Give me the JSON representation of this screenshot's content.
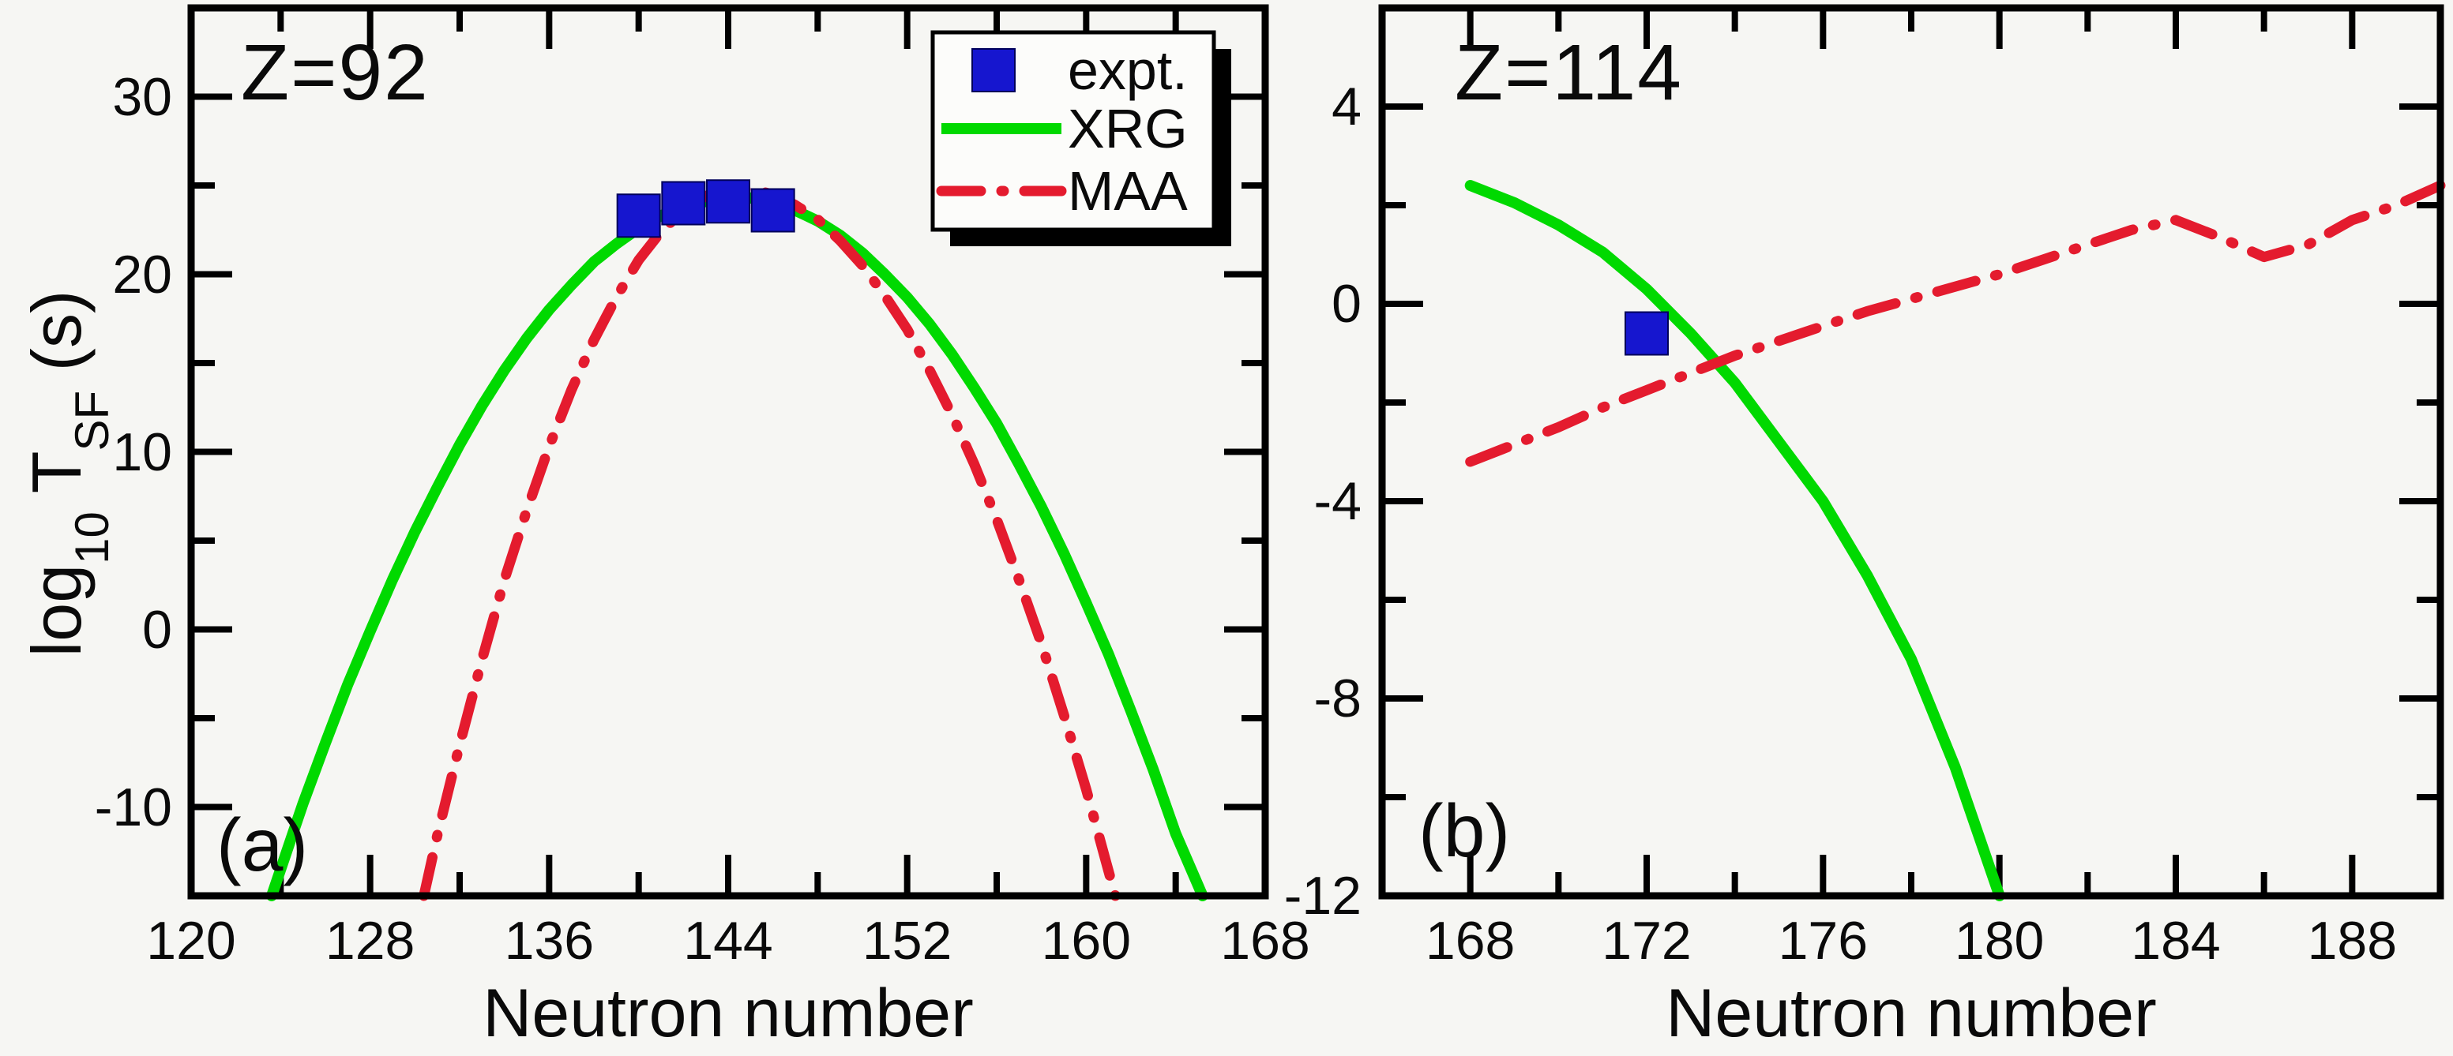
{
  "colors": {
    "background": "#f6f6f3",
    "frame": "#000000",
    "text": "#0a0a0a",
    "expt": "#1616cf",
    "xrg": "#00d900",
    "maa": "#e41b2e",
    "legend_bg": "#fcfcfa",
    "legend_shadow": "#000000"
  },
  "ylabel": {
    "prefix": "log",
    "sub1": "10",
    "mid": " T",
    "sub2": "SF",
    "suffix": " (s)"
  },
  "legend": {
    "items": [
      {
        "key": "expt",
        "label": "expt.",
        "marker": "square"
      },
      {
        "key": "xrg",
        "label": "XRG",
        "marker": "solid-line"
      },
      {
        "key": "maa",
        "label": "MAA",
        "marker": "dash-dot-line"
      }
    ]
  },
  "chart_data": [
    {
      "type": "line",
      "panel": "a",
      "corner_label": "(a)",
      "title": "Z=92",
      "xlabel": "Neutron number",
      "ylabel": "log10 T_SF (s)",
      "xlim": [
        120,
        168
      ],
      "ylim": [
        -15,
        35
      ],
      "xticks": [
        120,
        128,
        136,
        144,
        152,
        160,
        168
      ],
      "xticks_minor": [
        124,
        132,
        140,
        148,
        156,
        164
      ],
      "yticks": [
        30,
        20,
        10,
        0,
        -10
      ],
      "yticks_minor": [
        25,
        15,
        5,
        -5
      ],
      "grid": false,
      "series": [
        {
          "name": "XRG",
          "kind": "line",
          "style": "solid",
          "color_key": "xrg",
          "points": [
            [
              123.6,
              -15
            ],
            [
              125,
              -9.8
            ],
            [
              126,
              -6.4
            ],
            [
              127,
              -3.1
            ],
            [
              128,
              -0.1
            ],
            [
              129,
              2.8
            ],
            [
              130,
              5.5
            ],
            [
              131,
              8.0
            ],
            [
              132,
              10.4
            ],
            [
              133,
              12.6
            ],
            [
              134,
              14.6
            ],
            [
              135,
              16.4
            ],
            [
              136,
              18.0
            ],
            [
              137,
              19.4
            ],
            [
              138,
              20.7
            ],
            [
              139,
              21.7
            ],
            [
              140,
              22.6
            ],
            [
              141,
              23.3
            ],
            [
              142,
              23.8
            ],
            [
              143,
              24.1
            ],
            [
              144,
              24.3
            ],
            [
              145,
              24.3
            ],
            [
              146,
              24.0
            ],
            [
              147,
              23.6
            ],
            [
              148,
              23.0
            ],
            [
              149,
              22.2
            ],
            [
              150,
              21.2
            ],
            [
              151,
              20.0
            ],
            [
              152,
              18.7
            ],
            [
              153,
              17.2
            ],
            [
              154,
              15.5
            ],
            [
              155,
              13.6
            ],
            [
              156,
              11.6
            ],
            [
              157,
              9.3
            ],
            [
              158,
              6.9
            ],
            [
              159,
              4.3
            ],
            [
              160,
              1.5
            ],
            [
              161,
              -1.4
            ],
            [
              162,
              -4.6
            ],
            [
              163,
              -7.9
            ],
            [
              164,
              -11.5
            ],
            [
              165.2,
              -15
            ]
          ]
        },
        {
          "name": "MAA",
          "kind": "line",
          "style": "dashdot",
          "color_key": "maa",
          "points": [
            [
              130.4,
              -15
            ],
            [
              131,
              -11.6
            ],
            [
              132,
              -6.5
            ],
            [
              133,
              -1.7
            ],
            [
              134,
              2.8
            ],
            [
              135,
              6.7
            ],
            [
              136,
              10.3
            ],
            [
              137,
              13.5
            ],
            [
              138,
              16.3
            ],
            [
              139,
              18.7
            ],
            [
              140,
              20.8
            ],
            [
              141,
              22.4
            ],
            [
              142,
              23.6
            ],
            [
              143,
              24.4
            ],
            [
              144,
              24.8
            ],
            [
              145,
              24.8
            ],
            [
              146,
              24.5
            ],
            [
              147,
              23.9
            ],
            [
              148,
              23.1
            ],
            [
              149,
              21.9
            ],
            [
              150,
              20.5
            ],
            [
              151,
              18.8
            ],
            [
              152,
              16.9
            ],
            [
              153,
              14.6
            ],
            [
              154,
              12.1
            ],
            [
              155,
              9.3
            ],
            [
              156,
              6.2
            ],
            [
              157,
              2.8
            ],
            [
              158,
              -0.8
            ],
            [
              159,
              -4.8
            ],
            [
              160,
              -9.0
            ],
            [
              161.3,
              -15
            ]
          ]
        },
        {
          "name": "expt.",
          "kind": "scatter",
          "marker": "square",
          "color_key": "expt",
          "points": [
            [
              140,
              23.3
            ],
            [
              142,
              24.0
            ],
            [
              144,
              24.1
            ],
            [
              146,
              23.6
            ]
          ]
        }
      ]
    },
    {
      "type": "line",
      "panel": "b",
      "corner_label": "(b)",
      "title": "Z=114",
      "xlabel": "Neutron number",
      "ylabel": "log10 T_SF (s)",
      "xlim": [
        166,
        190
      ],
      "ylim": [
        -12,
        6
      ],
      "xticks": [
        168,
        172,
        176,
        180,
        184,
        188
      ],
      "xticks_minor": [
        170,
        174,
        178,
        182,
        186
      ],
      "yticks": [
        4,
        0,
        -4,
        -8,
        -12
      ],
      "yticks_minor": [
        2,
        -2,
        -6,
        -10
      ],
      "grid": false,
      "series": [
        {
          "name": "XRG",
          "kind": "line",
          "style": "solid",
          "color_key": "xrg",
          "points": [
            [
              168,
              2.4
            ],
            [
              169,
              2.05
            ],
            [
              170,
              1.6
            ],
            [
              171,
              1.05
            ],
            [
              172,
              0.3
            ],
            [
              173,
              -0.6
            ],
            [
              174,
              -1.6
            ],
            [
              175,
              -2.8
            ],
            [
              176,
              -4.0
            ],
            [
              177,
              -5.5
            ],
            [
              178,
              -7.2
            ],
            [
              179,
              -9.4
            ],
            [
              180,
              -12
            ]
          ]
        },
        {
          "name": "MAA",
          "kind": "line",
          "style": "dashdot",
          "color_key": "maa",
          "points": [
            [
              168,
              -3.2
            ],
            [
              169,
              -2.85
            ],
            [
              170,
              -2.5
            ],
            [
              171,
              -2.1
            ],
            [
              172,
              -1.75
            ],
            [
              173,
              -1.4
            ],
            [
              174,
              -1.05
            ],
            [
              175,
              -0.75
            ],
            [
              176,
              -0.45
            ],
            [
              177,
              -0.15
            ],
            [
              178,
              0.1
            ],
            [
              179,
              0.35
            ],
            [
              180,
              0.6
            ],
            [
              181,
              0.9
            ],
            [
              182,
              1.2
            ],
            [
              183,
              1.5
            ],
            [
              184,
              1.7
            ],
            [
              185,
              1.35
            ],
            [
              186,
              0.95
            ],
            [
              187,
              1.2
            ],
            [
              188,
              1.7
            ],
            [
              189,
              2.0
            ],
            [
              190,
              2.4
            ]
          ]
        },
        {
          "name": "expt.",
          "kind": "scatter",
          "marker": "square",
          "color_key": "expt",
          "points": [
            [
              172,
              -0.6
            ]
          ]
        }
      ]
    }
  ]
}
